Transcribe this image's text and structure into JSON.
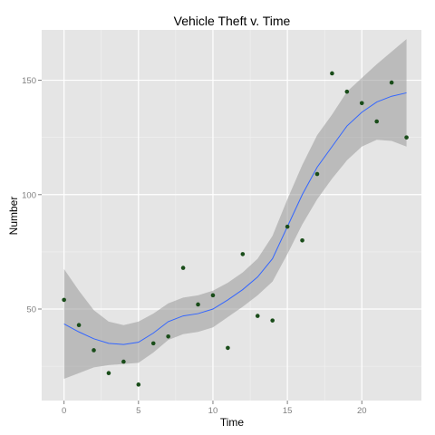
{
  "chart_data": {
    "type": "scatter",
    "title": "Vehicle Theft v. Time",
    "xlabel": "Time",
    "ylabel": "Number",
    "xlim": [
      -1.5,
      24
    ],
    "ylim": [
      10,
      172
    ],
    "x_ticks": [
      0,
      5,
      10,
      15,
      20
    ],
    "y_ticks": [
      50,
      100,
      150
    ],
    "grid": true,
    "legend": "none",
    "series": [
      {
        "type": "scatter",
        "points": [
          [
            0,
            54
          ],
          [
            1,
            43
          ],
          [
            2,
            32
          ],
          [
            3,
            22
          ],
          [
            4,
            27
          ],
          [
            5,
            17
          ],
          [
            6,
            35
          ],
          [
            7,
            38
          ],
          [
            8,
            68
          ],
          [
            9,
            52
          ],
          [
            10,
            56
          ],
          [
            11,
            33
          ],
          [
            12,
            74
          ],
          [
            13,
            47
          ],
          [
            14,
            45
          ],
          [
            15,
            86
          ],
          [
            16,
            80
          ],
          [
            17,
            109
          ],
          [
            18,
            153
          ],
          [
            19,
            145
          ],
          [
            20,
            140
          ],
          [
            21,
            132
          ],
          [
            22,
            149
          ],
          [
            23,
            125
          ]
        ]
      },
      {
        "type": "line",
        "smoother": "loess",
        "x": [
          0,
          1,
          2,
          3,
          4,
          5,
          6,
          7,
          8,
          9,
          10,
          11,
          12,
          13,
          14,
          15,
          16,
          17,
          18,
          19,
          20,
          21,
          22,
          23
        ],
        "fit": [
          43.5,
          40,
          37,
          35,
          34.5,
          35.5,
          39.5,
          44.5,
          47,
          48,
          50,
          54,
          58.5,
          64,
          72,
          86,
          100,
          112,
          121,
          130,
          136,
          140.5,
          143,
          144.5
        ],
        "lower": [
          19.5,
          22,
          24.5,
          25.5,
          26,
          26.5,
          31,
          36.5,
          39,
          40,
          42,
          46.5,
          51,
          56,
          62,
          74,
          87,
          98,
          107,
          115,
          121,
          124,
          123.5,
          121
        ],
        "upper": [
          67.5,
          58,
          49.5,
          44.5,
          43,
          44.5,
          48,
          52.5,
          55,
          56,
          58,
          61.5,
          66,
          72,
          82,
          98,
          113,
          126,
          135,
          145,
          151,
          157,
          162.5,
          168
        ]
      }
    ],
    "colors": {
      "panel_background": "#e5e5e5",
      "grid_major": "#ffffff",
      "grid_minor": "#f2f2f2",
      "point": "#1a4d1a",
      "smooth_line": "#3366ff",
      "confidence_band": "#999999",
      "tick_label": "#7f7f7f"
    }
  }
}
